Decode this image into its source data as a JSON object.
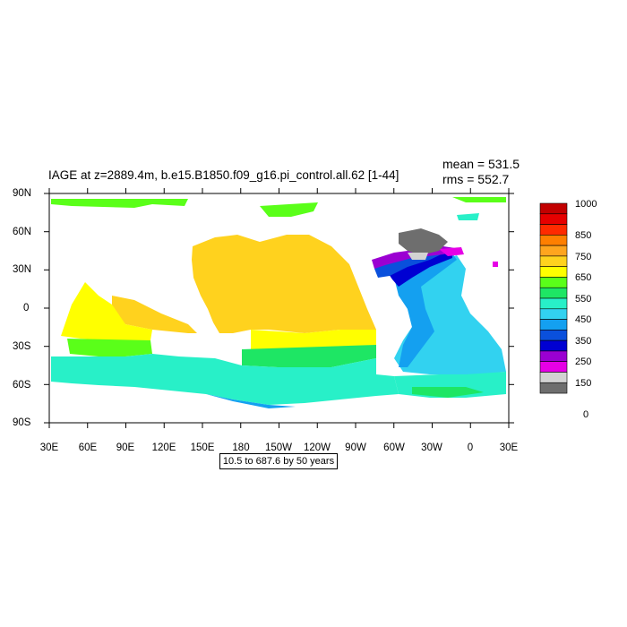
{
  "title": "IAGE at z=2889.4m, b.e15.B1850.f09_g16.pi_control.all.62 [1-44]",
  "stats": {
    "mean": "mean = 531.5",
    "rms": "rms = 552.7"
  },
  "subtitle_box": "10.5 to 687.6 by 50 years",
  "lat_labels": [
    "90N",
    "60N",
    "30N",
    "0",
    "30S",
    "60S",
    "90S"
  ],
  "lon_labels": [
    "30E",
    "60E",
    "90E",
    "120E",
    "150E",
    "180",
    "150W",
    "120W",
    "90W",
    "60W",
    "30W",
    "0",
    "30E"
  ],
  "legend": {
    "labels": [
      "1000",
      "850",
      "750",
      "650",
      "550",
      "450",
      "350",
      "250",
      "150",
      "0"
    ],
    "colors": [
      "#c20000",
      "#e60000",
      "#ff2a00",
      "#ff7f00",
      "#ffa51e",
      "#ffd21e",
      "#ffff00",
      "#5aff19",
      "#1ee664",
      "#28f0c8",
      "#32d2f0",
      "#14a0f0",
      "#0a50dc",
      "#0000d2",
      "#9b00d2",
      "#e600e6",
      "#d2d2d2",
      "#6e6e6e"
    ]
  },
  "field_colors": {
    "north_atlantic_deep": "#0000d2",
    "nadw_blue": "#0a50dc",
    "atlantic": "#14a0f0",
    "atlantic_light": "#32d2f0",
    "southern_ocean": "#28f0c8",
    "southern_green": "#1ee664",
    "indian_green": "#5aff19",
    "indian_yellow": "#ffff00",
    "pacific": "#ffd21e",
    "pacific_orange": "#ffa51e",
    "purple": "#9b00d2",
    "magenta": "#e600e6",
    "gray": "#6e6e6e",
    "light_gray": "#d2d2d2",
    "arctic": "#5aff19"
  }
}
